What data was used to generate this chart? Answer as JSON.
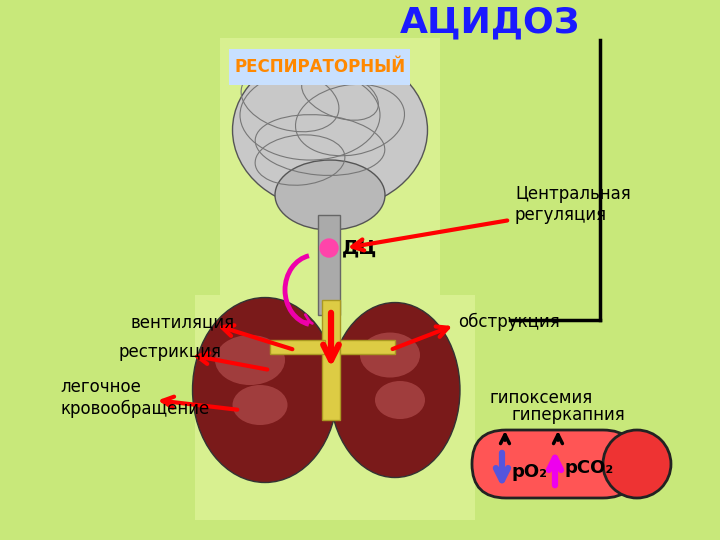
{
  "bg_color": "#c8e87a",
  "title": "АЦИДОЗ",
  "title_color": "#1a1aff",
  "title_fontsize": 26,
  "resp_label": "РЕСПИРАТОРНЫЙ",
  "resp_color": "#ff8800",
  "resp_bg": "#c8e0ff",
  "central_label": "Центральная\nрегуляция",
  "dc_label": "ДЦ",
  "ventil_label": "вентиляция",
  "restr_label": "рестрикция",
  "obstruct_label": "обструкция",
  "legoch_label": "легочное\nкровообращение",
  "hypox_label": "гипоксемия",
  "hypercap_label": "гиперкапния",
  "po2_label": "pO₂",
  "pco2_label": "pCO₂",
  "cylinder_color": "#ff5555",
  "cylinder_edge": "#cc0000",
  "arrow_down_color": "#5555dd",
  "arrow_up_color": "#ee00ee",
  "text_color": "#000000",
  "brain_bg": "#d8f090",
  "lung_bg": "#d8f090"
}
